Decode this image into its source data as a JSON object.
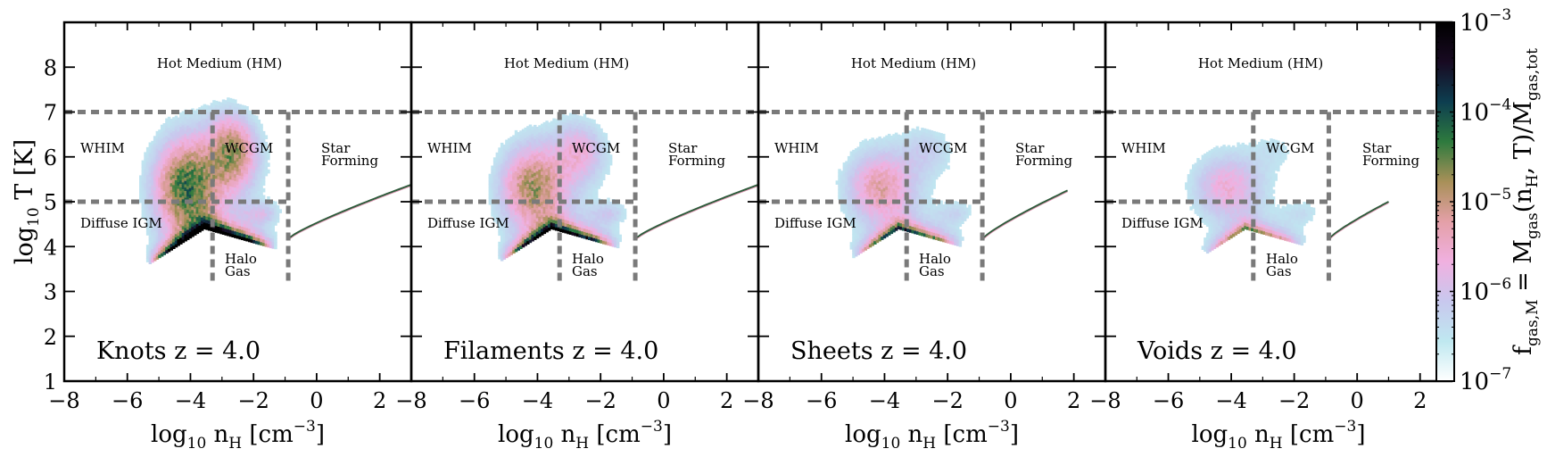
{
  "chart_data": [
    {
      "type": "heatmap",
      "panel_label": "Knots z = 4.0",
      "title": "",
      "xlabel": "log10 nH [cm^-3]",
      "ylabel": "log10 T [K]",
      "xlim": [
        -8,
        3
      ],
      "ylim": [
        1,
        9
      ],
      "amplitude": 1.0,
      "hot_extent": 1.0,
      "star_line_end": [
        3.0,
        5.38
      ]
    },
    {
      "type": "heatmap",
      "panel_label": "Filaments z = 4.0",
      "title": "",
      "xlabel": "log10 nH [cm^-3]",
      "ylabel": "log10 T [K]",
      "xlim": [
        -8,
        3
      ],
      "ylim": [
        1,
        9
      ],
      "amplitude": 0.8,
      "hot_extent": 0.7,
      "star_line_end": [
        3.0,
        5.38
      ]
    },
    {
      "type": "heatmap",
      "panel_label": "Sheets z = 4.0",
      "title": "",
      "xlabel": "log10 nH [cm^-3]",
      "ylabel": "log10 T [K]",
      "xlim": [
        -8,
        3
      ],
      "ylim": [
        1,
        9
      ],
      "amplitude": 0.6,
      "hot_extent": 0.45,
      "star_line_end": [
        1.8,
        5.25
      ]
    },
    {
      "type": "heatmap",
      "panel_label": "Voids z = 4.0",
      "title": "",
      "xlabel": "log10 nH [cm^-3]",
      "ylabel": "log10 T [K]",
      "xlim": [
        -8,
        3
      ],
      "ylim": [
        1,
        9
      ],
      "amplitude": 0.45,
      "hot_extent": 0.3,
      "star_line_end": [
        1.0,
        5.0
      ]
    }
  ],
  "axes": {
    "xticks": [
      -8,
      -6,
      -4,
      -2,
      0,
      2
    ],
    "xtick_labels": [
      "−8",
      "−6",
      "−4",
      "−2",
      "0",
      "2"
    ],
    "yticks": [
      1,
      2,
      3,
      4,
      5,
      6,
      7,
      8
    ],
    "ytick_labels": [
      "1",
      "2",
      "3",
      "4",
      "5",
      "6",
      "7",
      "8"
    ],
    "xlabel_main": "log",
    "xlabel_sub": "10",
    "xlabel_n": " n",
    "xlabel_nsub": "H",
    "xlabel_unit": "  [cm",
    "xlabel_exp": "−3",
    "xlabel_close": "]",
    "ylabel_main": "log",
    "ylabel_sub": "10",
    "ylabel_rest": " T [K]"
  },
  "phase_boundaries": {
    "T_hot": 7,
    "T_warm": 5,
    "n_wcgm": -3.3,
    "n_sf": -0.9,
    "T_bottom": 3.2
  },
  "region_labels": {
    "hot": "Hot Medium (HM)",
    "whim": "WHIM",
    "wcgm": "WCGM",
    "star_1": "Star",
    "star_2": "Forming",
    "diffuse": "Diffuse IGM",
    "halo_1": "Halo",
    "halo_2": "Gas"
  },
  "colorbar": {
    "tick_labels": [
      "10",
      "10",
      "10",
      "10",
      "10"
    ],
    "tick_exps": [
      "−3",
      "−4",
      "−5",
      "−6",
      "−7"
    ],
    "log_values": [
      -3,
      -4,
      -5,
      -6,
      -7
    ],
    "label_f": "f",
    "label_fsub": "gas,M",
    "label_eq": " = M",
    "label_msub": "gas",
    "label_args": "(n",
    "label_hsub": "H",
    "label_t": ", T)/M",
    "label_totsub": "gas,tot",
    "stops": [
      "#ffffff",
      "#bfe8f0",
      "#c8c8ee",
      "#f0b0e0",
      "#e4a0a8",
      "#a89058",
      "#2e7a3e",
      "#0d3e50",
      "#180a22",
      "#000000"
    ]
  }
}
